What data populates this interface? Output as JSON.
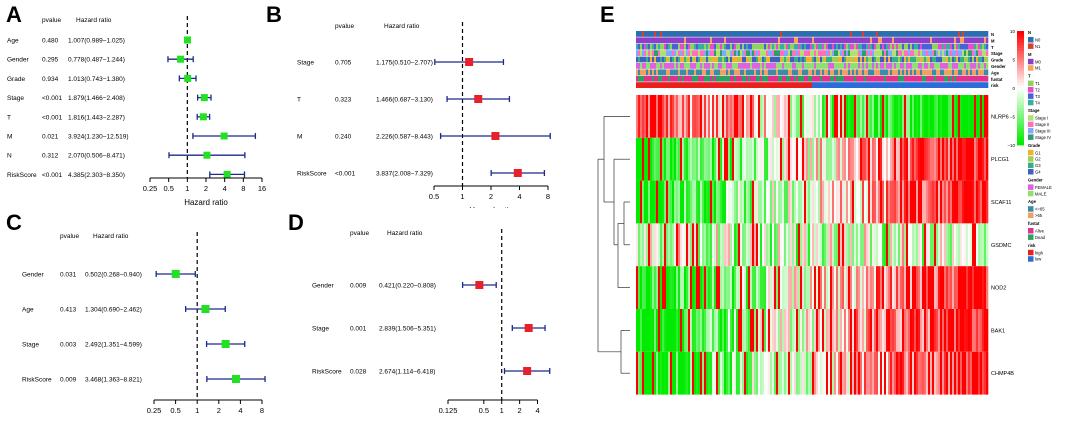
{
  "panels": {
    "A": "A",
    "B": "B",
    "C": "C",
    "D": "D",
    "E": "E"
  },
  "chart_data": [
    {
      "id": "A",
      "type": "forest",
      "col_pvalue": "pvalue",
      "col_hr": "Hazard ratio",
      "xlabel": "Hazard ratio",
      "ticks": [
        "0.25",
        "0.5",
        "1",
        "2",
        "4",
        "8",
        "16"
      ],
      "xlim": [
        0.25,
        16
      ],
      "marker": "#22e022",
      "rows": [
        {
          "label": "Age",
          "pvalue": "0.480",
          "hr_text": "1.007(0.989−1.025)",
          "hr": 1.007,
          "lo": 0.989,
          "hi": 1.025
        },
        {
          "label": "Gender",
          "pvalue": "0.295",
          "hr_text": "0.778(0.487−1.244)",
          "hr": 0.778,
          "lo": 0.487,
          "hi": 1.244
        },
        {
          "label": "Grade",
          "pvalue": "0.934",
          "hr_text": "1.013(0.743−1.380)",
          "hr": 1.013,
          "lo": 0.743,
          "hi": 1.38
        },
        {
          "label": "Stage",
          "pvalue": "<0.001",
          "hr_text": "1.879(1.466−2.408)",
          "hr": 1.879,
          "lo": 1.466,
          "hi": 2.408
        },
        {
          "label": "T",
          "pvalue": "<0.001",
          "hr_text": "1.816(1.443−2.287)",
          "hr": 1.816,
          "lo": 1.443,
          "hi": 2.287
        },
        {
          "label": "M",
          "pvalue": "0.021",
          "hr_text": "3.924(1.230−12.519)",
          "hr": 3.924,
          "lo": 1.23,
          "hi": 12.519
        },
        {
          "label": "N",
          "pvalue": "0.312",
          "hr_text": "2.070(0.506−8.471)",
          "hr": 2.07,
          "lo": 0.506,
          "hi": 8.471
        },
        {
          "label": "RiskScore",
          "pvalue": "<0.001",
          "hr_text": "4.385(2.303−8.350)",
          "hr": 4.385,
          "lo": 2.303,
          "hi": 8.35
        }
      ]
    },
    {
      "id": "B",
      "type": "forest",
      "col_pvalue": "pvalue",
      "col_hr": "Hazard ratio",
      "xlabel": "Hazard ratio",
      "ticks": [
        "0.5",
        "1",
        "2",
        "4",
        "8"
      ],
      "xlim": [
        0.5,
        8
      ],
      "marker": "#e8202a",
      "rows": [
        {
          "label": "Stage",
          "pvalue": "0.705",
          "hr_text": "1.175(0.510−2.707)",
          "hr": 1.175,
          "lo": 0.51,
          "hi": 2.707
        },
        {
          "label": "T",
          "pvalue": "0.323",
          "hr_text": "1.466(0.687−3.130)",
          "hr": 1.466,
          "lo": 0.687,
          "hi": 3.13
        },
        {
          "label": "M",
          "pvalue": "0.240",
          "hr_text": "2.226(0.587−8.443)",
          "hr": 2.226,
          "lo": 0.587,
          "hi": 8.443
        },
        {
          "label": "RiskScore",
          "pvalue": "<0.001",
          "hr_text": "3.837(2.008−7.329)",
          "hr": 3.837,
          "lo": 2.008,
          "hi": 7.329
        }
      ]
    },
    {
      "id": "C",
      "type": "forest",
      "col_pvalue": "pvalue",
      "col_hr": "Hazard ratio",
      "xlabel": "Hazard ratio",
      "ticks": [
        "0.25",
        "0.5",
        "1",
        "2",
        "4",
        "8"
      ],
      "xlim": [
        0.25,
        8
      ],
      "marker": "#22e022",
      "rows": [
        {
          "label": "Gender",
          "pvalue": "0.031",
          "hr_text": "0.502(0.268−0.940)",
          "hr": 0.502,
          "lo": 0.268,
          "hi": 0.94
        },
        {
          "label": "Age",
          "pvalue": "0.413",
          "hr_text": "1.304(0.690−2.462)",
          "hr": 1.304,
          "lo": 0.69,
          "hi": 2.462
        },
        {
          "label": "Stage",
          "pvalue": "0.003",
          "hr_text": "2.492(1.351−4.599)",
          "hr": 2.492,
          "lo": 1.351,
          "hi": 4.599
        },
        {
          "label": "RiskScore",
          "pvalue": "0.009",
          "hr_text": "3.468(1.363−8.821)",
          "hr": 3.468,
          "lo": 1.363,
          "hi": 8.821
        }
      ]
    },
    {
      "id": "D",
      "type": "forest",
      "col_pvalue": "pvalue",
      "col_hr": "Hazard ratio",
      "xlabel": "Hazard ratio",
      "ticks": [
        "0.125",
        "0.5",
        "1",
        "2",
        "4"
      ],
      "xlim": [
        0.125,
        6
      ],
      "marker": "#e8202a",
      "rows": [
        {
          "label": "Gender",
          "pvalue": "0.009",
          "hr_text": "0.421(0.220−0.808)",
          "hr": 0.421,
          "lo": 0.22,
          "hi": 0.808
        },
        {
          "label": "Stage",
          "pvalue": "0.001",
          "hr_text": "2.839(1.506−5.351)",
          "hr": 2.839,
          "lo": 1.506,
          "hi": 5.351
        },
        {
          "label": "RiskScore",
          "pvalue": "0.028",
          "hr_text": "2.674(1.114−6.418)",
          "hr": 2.674,
          "lo": 1.114,
          "hi": 6.418
        }
      ]
    },
    {
      "id": "E",
      "type": "heatmap",
      "annotation_rows": [
        "N",
        "M",
        "T",
        "Stage",
        "Grade",
        "Gender",
        "Age",
        "fustat",
        "risk"
      ],
      "genes": [
        "NLRP6",
        "PLCG1",
        "SCAF11",
        "GSDMC",
        "NOD2",
        "BAK1",
        "CHMP4B"
      ],
      "color_scale": {
        "ticks": [
          "10",
          "5",
          "0",
          "−5",
          "−10"
        ],
        "high": "#ff0000",
        "mid": "#ffffff",
        "low": "#00ee00"
      },
      "legend": [
        {
          "title": "N",
          "items": [
            {
              "label": "N0",
              "color": "#2c6fb0"
            },
            {
              "label": "N1",
              "color": "#d8402c"
            }
          ]
        },
        {
          "title": "M",
          "items": [
            {
              "label": "M0",
              "color": "#8d3fc9"
            },
            {
              "label": "M1",
              "color": "#ffa057"
            }
          ]
        },
        {
          "title": "T",
          "items": [
            {
              "label": "T1",
              "color": "#8ed45c"
            },
            {
              "label": "T2",
              "color": "#e84cc6"
            },
            {
              "label": "T3",
              "color": "#4a62d8"
            },
            {
              "label": "T4",
              "color": "#38b0a0"
            }
          ]
        },
        {
          "title": "Stage",
          "items": [
            {
              "label": "Stage I",
              "color": "#b0e070"
            },
            {
              "label": "Stage II",
              "color": "#ff6fc0"
            },
            {
              "label": "Stage III",
              "color": "#80a8ff"
            },
            {
              "label": "Stage IV",
              "color": "#2f9c6e"
            }
          ]
        },
        {
          "title": "Grade",
          "items": [
            {
              "label": "G1",
              "color": "#f0b030"
            },
            {
              "label": "G2",
              "color": "#a0d050"
            },
            {
              "label": "G3",
              "color": "#36b080"
            },
            {
              "label": "G4",
              "color": "#4060c0"
            }
          ]
        },
        {
          "title": "Gender",
          "items": [
            {
              "label": "FEMALE",
              "color": "#e060e0"
            },
            {
              "label": "MALE",
              "color": "#8ee070"
            }
          ]
        },
        {
          "title": "Age",
          "items": [
            {
              "label": "<=65",
              "color": "#3c8ca8"
            },
            {
              "label": ">65",
              "color": "#f0a060"
            }
          ]
        },
        {
          "title": "fustat",
          "items": [
            {
              "label": "Alive",
              "color": "#e03090"
            },
            {
              "label": "Dead",
              "color": "#2ea060"
            }
          ]
        },
        {
          "title": "risk",
          "items": [
            {
              "label": "high",
              "color": "#e82020"
            },
            {
              "label": "low",
              "color": "#2a6cd8"
            }
          ]
        }
      ]
    }
  ]
}
